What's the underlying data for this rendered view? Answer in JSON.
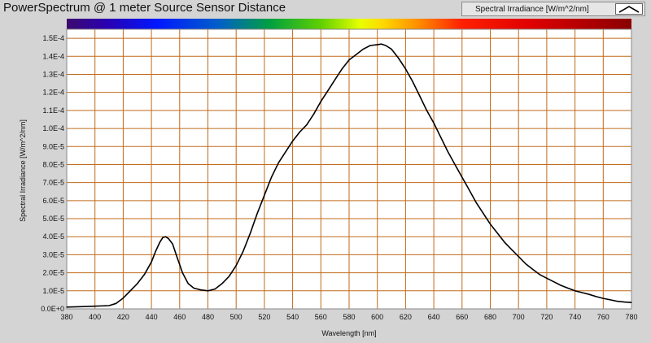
{
  "window": {
    "title": "PowerSpectrum @ 1 meter Source Sensor Distance"
  },
  "legend": {
    "label": "Spectral Irradiance [W/m^2/nm]",
    "line_color": "#000000"
  },
  "colors": {
    "plot_background": "#ffffff",
    "grid": "#c06a1a",
    "frame": "#d4d4d4"
  },
  "chart_data": {
    "type": "line",
    "title": "PowerSpectrum @ 1 meter Source Sensor Distance",
    "xlabel": "Wavelength [nm]",
    "ylabel": "Spectral Irradiance [W/m^2/nm]",
    "xlim": [
      380,
      780
    ],
    "ylim": [
      0,
      0.000155
    ],
    "grid": true,
    "legend_position": "top-right",
    "color_bar": "visible-spectrum gradient from violet (380 nm) to dark red (780 nm)",
    "x_ticks": [
      "380",
      "400",
      "420",
      "440",
      "460",
      "480",
      "500",
      "520",
      "540",
      "560",
      "580",
      "600",
      "620",
      "640",
      "660",
      "680",
      "700",
      "720",
      "740",
      "760",
      "780"
    ],
    "y_ticks": [
      "0.0E+0",
      "1.0E-5",
      "2.0E-5",
      "3.0E-5",
      "4.0E-5",
      "5.0E-5",
      "6.0E-5",
      "7.0E-5",
      "8.0E-5",
      "9.0E-5",
      "1.0E-4",
      "1.1E-4",
      "1.2E-4",
      "1.3E-4",
      "1.4E-4",
      "1.5E-4"
    ],
    "series": [
      {
        "name": "Spectral Irradiance [W/m^2/nm]",
        "color": "#000000",
        "x": [
          380,
          390,
          400,
          410,
          415,
          420,
          425,
          430,
          435,
          440,
          443,
          446,
          448,
          450,
          452,
          455,
          458,
          462,
          466,
          470,
          475,
          480,
          485,
          490,
          495,
          500,
          505,
          510,
          515,
          520,
          525,
          530,
          535,
          540,
          545,
          550,
          555,
          560,
          565,
          570,
          575,
          580,
          585,
          590,
          595,
          600,
          603,
          606,
          610,
          615,
          620,
          625,
          630,
          635,
          640,
          645,
          650,
          655,
          660,
          665,
          670,
          675,
          680,
          685,
          690,
          695,
          700,
          705,
          710,
          715,
          720,
          725,
          730,
          735,
          740,
          745,
          750,
          755,
          760,
          765,
          770,
          775,
          780
        ],
        "y": [
          1e-06,
          1.2e-06,
          1.5e-06,
          1.8e-06,
          3e-06,
          6e-06,
          1e-05,
          1.4e-05,
          1.9e-05,
          2.6e-05,
          3.2e-05,
          3.7e-05,
          3.95e-05,
          4e-05,
          3.9e-05,
          3.6e-05,
          2.9e-05,
          2e-05,
          1.4e-05,
          1.15e-05,
          1.05e-05,
          1e-05,
          1.1e-05,
          1.4e-05,
          1.8e-05,
          2.4e-05,
          3.2e-05,
          4.2e-05,
          5.3e-05,
          6.3e-05,
          7.3e-05,
          8.1e-05,
          8.7e-05,
          9.3e-05,
          9.8e-05,
          0.000102,
          0.000108,
          0.000115,
          0.000121,
          0.000127,
          0.000133,
          0.000138,
          0.000141,
          0.000144,
          0.000146,
          0.0001465,
          0.0001468,
          0.000146,
          0.000144,
          0.000139,
          0.000133,
          0.000126,
          0.000118,
          0.00011,
          0.000103,
          9.5e-05,
          8.7e-05,
          8e-05,
          7.3e-05,
          6.6e-05,
          5.9e-05,
          5.3e-05,
          4.7e-05,
          4.2e-05,
          3.7e-05,
          3.3e-05,
          2.9e-05,
          2.5e-05,
          2.2e-05,
          1.9e-05,
          1.7e-05,
          1.5e-05,
          1.3e-05,
          1.15e-05,
          1e-05,
          9e-06,
          8e-06,
          6.8e-06,
          5.8e-06,
          5e-06,
          4.2e-06,
          3.8e-06,
          3.5e-06
        ]
      }
    ]
  }
}
